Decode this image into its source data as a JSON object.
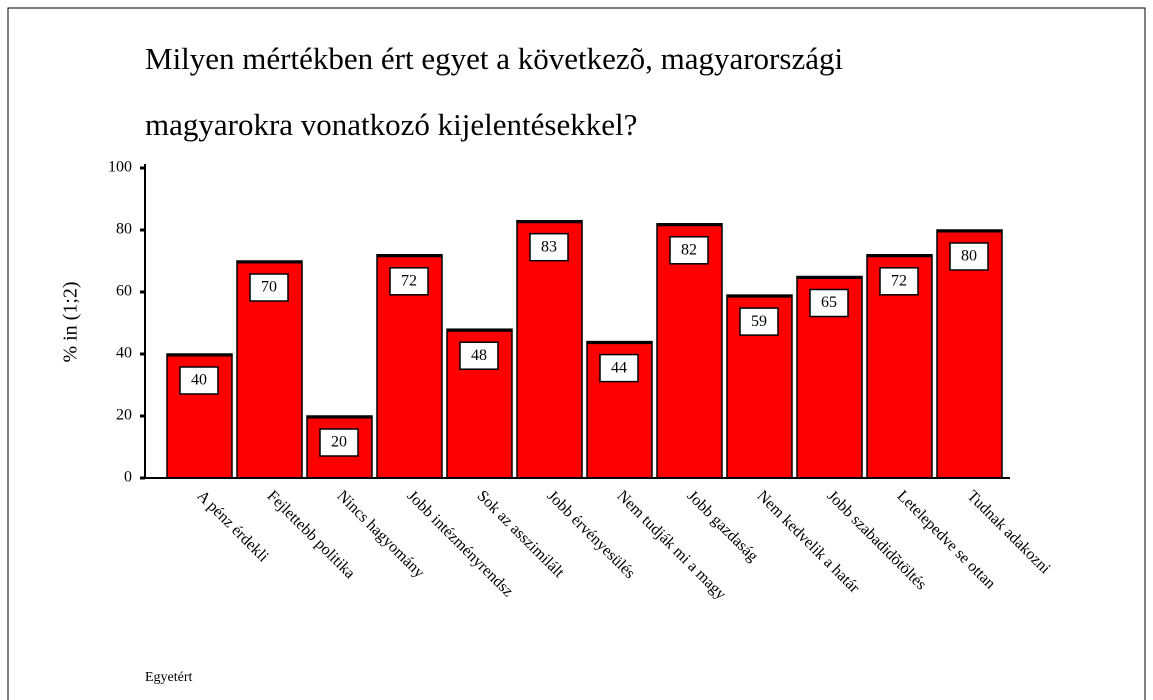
{
  "chart_data": {
    "type": "bar",
    "title_lines": [
      "Milyen mértékben ért egyet a következõ, magyarországi",
      "magyarokra vonatkozó kijelentésekkel?"
    ],
    "y_label": "% in (1;2)",
    "footnote": "Egyetért",
    "categories": [
      "A pénz érdekli",
      "Fejlettebb politika",
      "Nincs hagyomány",
      "Jobb intézményrendsz",
      "Sok az asszimilált",
      "Jobb érvényesülés",
      "Nem tudják mi a magy",
      "Jobb gazdaság",
      "Nem kedvelik a határ",
      "Jobb szabadidõtöltés",
      "Letelepedve se ottan",
      "Tudnak adakozni"
    ],
    "values": [
      40,
      70,
      20,
      72,
      48,
      83,
      44,
      82,
      59,
      65,
      72,
      80
    ],
    "color": "#ff0000",
    "ylim": [
      0,
      100
    ],
    "yticks": [
      0,
      20,
      40,
      60,
      80,
      100
    ],
    "grid": false
  }
}
